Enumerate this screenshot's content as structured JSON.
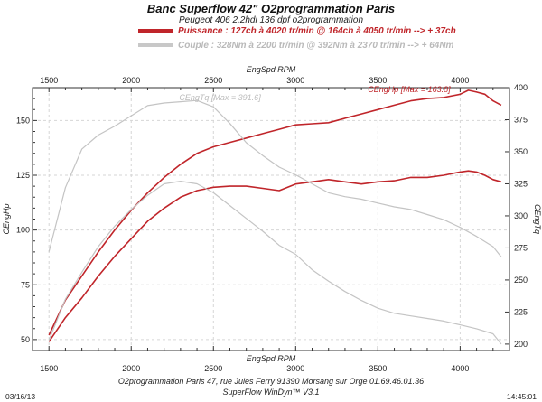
{
  "header": {
    "title": "Banc Superflow 42\" O2programmation Paris",
    "subtitle": "Peugeot 406 2.2hdi 136 dpf o2programmation",
    "legend_power": "Puissance : 127ch à 4020 tr/min @ 164ch à 4050 tr/min --> + 37ch",
    "legend_torque": "Couple : 328Nm à 2200 tr/min @ 392Nm à 2370 tr/min --> + 64Nm"
  },
  "footer": {
    "line1": "O2programmation Paris 47, rue Jules Ferry 91390 Morsang sur Orge 01.69.46.01.36",
    "line2": "SuperFlow WinDyn™ V3.1",
    "date": "03/16/13",
    "time": "14:45:01"
  },
  "colors": {
    "power": "#c0252a",
    "torque": "#c4c4c4",
    "background": "#ffffff"
  },
  "chart_data": {
    "type": "line",
    "xlabel": "EngSpd RPM",
    "ylabel_left": "CEngHp",
    "ylabel_right": "CEngTq",
    "xlim": [
      1400,
      4300
    ],
    "ylim_left": [
      45,
      165
    ],
    "ylim_right": [
      195,
      400
    ],
    "x_ticks": [
      1500,
      2000,
      2500,
      3000,
      3500,
      4000
    ],
    "y_left_ticks": [
      50,
      75,
      100,
      125,
      150
    ],
    "y_right_ticks": [
      200,
      225,
      250,
      275,
      300,
      325,
      350,
      375,
      400
    ],
    "annotations": [
      {
        "text": "CEngTq [Max = 391.6]",
        "x": 2540,
        "axis": "right",
        "y": 391.6,
        "color": "#bcbcbc"
      },
      {
        "text": "CEngHp [Max = 163.8]",
        "x": 3690,
        "axis": "left",
        "y": 163.8,
        "color": "#c0252a"
      }
    ],
    "series": [
      {
        "axis": "left",
        "color": "#c0252a",
        "x": [
          1500,
          1600,
          1700,
          1800,
          1900,
          2000,
          2100,
          2200,
          2300,
          2400,
          2500,
          2600,
          2700,
          2800,
          2900,
          3000,
          3100,
          3200,
          3300,
          3400,
          3500,
          3600,
          3700,
          3800,
          3900,
          4000,
          4050,
          4100,
          4150,
          4200,
          4250
        ],
        "y": [
          52,
          68,
          79,
          90,
          100,
          109,
          117,
          124,
          130,
          135,
          138,
          140,
          142,
          144,
          146,
          148,
          148.5,
          149,
          151,
          153,
          155,
          157,
          159,
          160,
          160.5,
          162,
          163.8,
          163,
          162,
          159,
          157
        ]
      },
      {
        "axis": "left",
        "color": "#c0252a",
        "x": [
          1500,
          1600,
          1700,
          1800,
          1900,
          2000,
          2100,
          2200,
          2300,
          2400,
          2500,
          2600,
          2700,
          2800,
          2900,
          3000,
          3100,
          3200,
          3300,
          3400,
          3500,
          3600,
          3700,
          3800,
          3900,
          4000,
          4050,
          4100,
          4150,
          4200,
          4250
        ],
        "y": [
          49,
          60,
          69,
          79,
          88,
          96,
          104,
          110,
          115,
          118,
          119.5,
          120,
          120,
          119,
          118,
          121,
          122,
          123,
          122,
          121,
          122,
          122.5,
          124,
          124,
          125,
          126.5,
          127,
          126.5,
          125,
          123,
          122
        ]
      },
      {
        "axis": "right",
        "color": "#c4c4c4",
        "x": [
          1500,
          1600,
          1700,
          1800,
          1900,
          2000,
          2100,
          2200,
          2300,
          2400,
          2500,
          2600,
          2700,
          2800,
          2900,
          3000,
          3100,
          3200,
          3300,
          3400,
          3500,
          3600,
          3700,
          3800,
          3900,
          4000,
          4100,
          4200,
          4250
        ],
        "y": [
          272,
          322,
          352,
          363,
          370,
          378,
          386,
          388,
          389,
          390,
          385,
          372,
          357,
          347,
          338,
          332,
          325,
          318,
          315,
          313,
          310,
          307,
          305,
          301,
          297,
          291,
          284,
          276,
          268
        ]
      },
      {
        "axis": "right",
        "color": "#c4c4c4",
        "x": [
          1500,
          1600,
          1700,
          1800,
          1900,
          2000,
          2100,
          2200,
          2300,
          2400,
          2500,
          2600,
          2700,
          2800,
          2900,
          3000,
          3100,
          3200,
          3300,
          3400,
          3500,
          3600,
          3700,
          3800,
          3900,
          4000,
          4100,
          4200,
          4250
        ],
        "y": [
          203,
          235,
          256,
          276,
          292,
          305,
          316,
          325,
          327,
          325,
          318,
          308,
          298,
          288,
          277,
          270,
          258,
          249,
          241,
          234,
          228,
          224,
          222,
          220,
          218,
          215,
          212,
          208,
          200
        ]
      }
    ]
  }
}
